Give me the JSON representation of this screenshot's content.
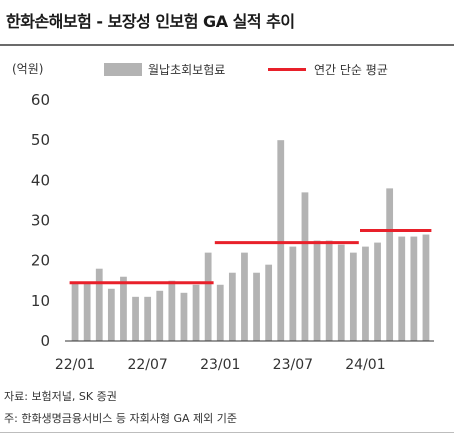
{
  "header": {
    "title": "한화손해보험 - 보장성 인보험 GA 실적 추이",
    "unit": "(억원)"
  },
  "legend": {
    "bar_label": "월납초회보험료",
    "line_label": "연간 단순 평균"
  },
  "footer": {
    "source": "자료: 보험저널, SK 증권",
    "note": "주: 한화생명금융서비스 등 자회사형 GA 제외 기준"
  },
  "colors": {
    "bar": "#b3b3b3",
    "average_line": "#e8202a"
  },
  "chart_data": {
    "type": "bar",
    "title": "한화손해보험 - 보장성 인보험 GA 실적 추이",
    "ylabel": "(억원)",
    "ylim": [
      0,
      60
    ],
    "yticks": [
      0,
      10,
      20,
      30,
      40,
      50,
      60
    ],
    "grid": false,
    "legend_position": "top",
    "categories": [
      "22/01",
      "22/02",
      "22/03",
      "22/04",
      "22/05",
      "22/06",
      "22/07",
      "22/08",
      "22/09",
      "22/10",
      "22/11",
      "22/12",
      "23/01",
      "23/02",
      "23/03",
      "23/04",
      "23/05",
      "23/06",
      "23/07",
      "23/08",
      "23/09",
      "23/10",
      "23/11",
      "23/12",
      "24/01",
      "24/02",
      "24/03",
      "24/04",
      "24/05",
      "24/06"
    ],
    "xtick_labels": [
      "22/01",
      "22/07",
      "23/01",
      "23/07",
      "24/01"
    ],
    "series": [
      {
        "name": "월납초회보험료",
        "type": "bar",
        "values": [
          14.5,
          14.5,
          18,
          13,
          16,
          11,
          11,
          12.5,
          15,
          12,
          14,
          22,
          14,
          17,
          22,
          17,
          19,
          50,
          23.5,
          37,
          25,
          25,
          24,
          22,
          23.5,
          24.5,
          38,
          26,
          26,
          26.5
        ]
      },
      {
        "name": "연간 단순 평균",
        "type": "step",
        "segments": [
          {
            "start": "22/01",
            "end": "22/12",
            "value": 14.5
          },
          {
            "start": "23/01",
            "end": "23/12",
            "value": 24.5
          },
          {
            "start": "24/01",
            "end": "24/06",
            "value": 27.5
          }
        ]
      }
    ]
  }
}
